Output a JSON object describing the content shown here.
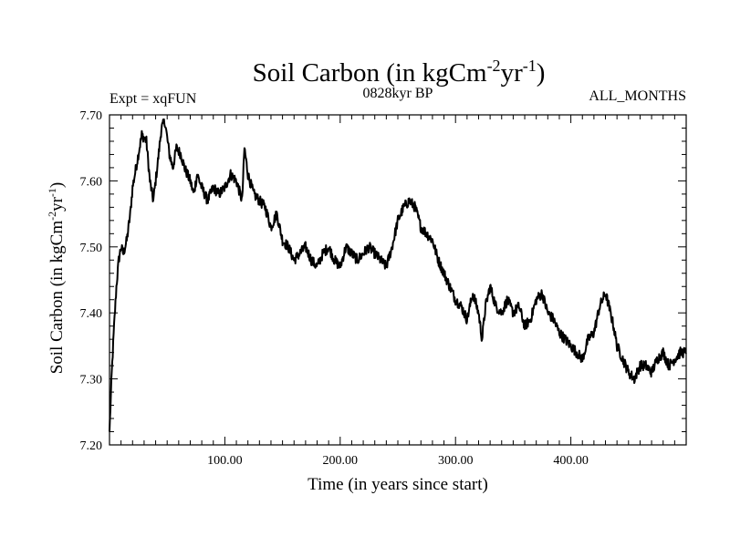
{
  "chart_data": {
    "type": "line",
    "title": "Soil Carbon (in kgCm",
    "title_sup1": "-2",
    "title_mid": "yr",
    "title_sup2": "-1",
    "title_end": ")",
    "subtitle_left": "Expt = xqFUN",
    "subtitle_center": "0828kyr BP",
    "subtitle_right": "ALL_MONTHS",
    "xlabel": "Time (in years since start)",
    "ylabel": "Soil Carbon (in kgCm",
    "ylabel_sup1": "-2",
    "ylabel_mid": "yr",
    "ylabel_sup2": "-1",
    "ylabel_end": ")",
    "xlim": [
      0,
      500
    ],
    "ylim": [
      7.2,
      7.7
    ],
    "xticks": [
      100,
      200,
      300,
      400
    ],
    "xtick_labels": [
      "100.00",
      "200.00",
      "300.00",
      "400.00"
    ],
    "yticks": [
      7.2,
      7.3,
      7.4,
      7.5,
      7.6,
      7.7
    ],
    "ytick_labels": [
      "7.20",
      "7.30",
      "7.40",
      "7.50",
      "7.60",
      "7.70"
    ],
    "series": [
      {
        "name": "Soil Carbon",
        "x": [
          0,
          2,
          4,
          6,
          8,
          10,
          12,
          15,
          18,
          20,
          25,
          28,
          32,
          35,
          38,
          42,
          45,
          48,
          52,
          55,
          58,
          62,
          65,
          70,
          73,
          76,
          80,
          85,
          90,
          95,
          100,
          105,
          110,
          115,
          117,
          120,
          125,
          130,
          135,
          140,
          145,
          150,
          155,
          160,
          165,
          170,
          175,
          180,
          185,
          190,
          195,
          200,
          205,
          210,
          215,
          220,
          225,
          230,
          235,
          240,
          245,
          250,
          255,
          260,
          265,
          270,
          275,
          280,
          285,
          290,
          295,
          300,
          305,
          310,
          315,
          320,
          323,
          326,
          330,
          335,
          340,
          345,
          350,
          355,
          360,
          365,
          370,
          375,
          380,
          385,
          390,
          395,
          400,
          405,
          410,
          415,
          420,
          425,
          430,
          433,
          437,
          440,
          445,
          450,
          455,
          460,
          465,
          470,
          475,
          480,
          485,
          490,
          495,
          500
        ],
        "y": [
          7.22,
          7.31,
          7.38,
          7.44,
          7.48,
          7.5,
          7.49,
          7.51,
          7.55,
          7.59,
          7.64,
          7.67,
          7.66,
          7.6,
          7.57,
          7.63,
          7.68,
          7.69,
          7.64,
          7.62,
          7.65,
          7.64,
          7.62,
          7.6,
          7.58,
          7.61,
          7.59,
          7.57,
          7.59,
          7.58,
          7.59,
          7.61,
          7.6,
          7.57,
          7.65,
          7.61,
          7.58,
          7.57,
          7.56,
          7.53,
          7.55,
          7.51,
          7.5,
          7.48,
          7.49,
          7.5,
          7.48,
          7.47,
          7.49,
          7.5,
          7.48,
          7.47,
          7.5,
          7.49,
          7.48,
          7.49,
          7.5,
          7.49,
          7.48,
          7.47,
          7.5,
          7.54,
          7.56,
          7.57,
          7.56,
          7.53,
          7.52,
          7.51,
          7.48,
          7.46,
          7.44,
          7.42,
          7.41,
          7.39,
          7.43,
          7.4,
          7.36,
          7.41,
          7.44,
          7.41,
          7.4,
          7.42,
          7.4,
          7.41,
          7.38,
          7.39,
          7.42,
          7.43,
          7.4,
          7.39,
          7.37,
          7.36,
          7.35,
          7.34,
          7.33,
          7.36,
          7.37,
          7.41,
          7.43,
          7.41,
          7.38,
          7.35,
          7.33,
          7.31,
          7.3,
          7.32,
          7.32,
          7.31,
          7.33,
          7.34,
          7.32,
          7.33,
          7.34,
          7.34
        ]
      }
    ]
  }
}
